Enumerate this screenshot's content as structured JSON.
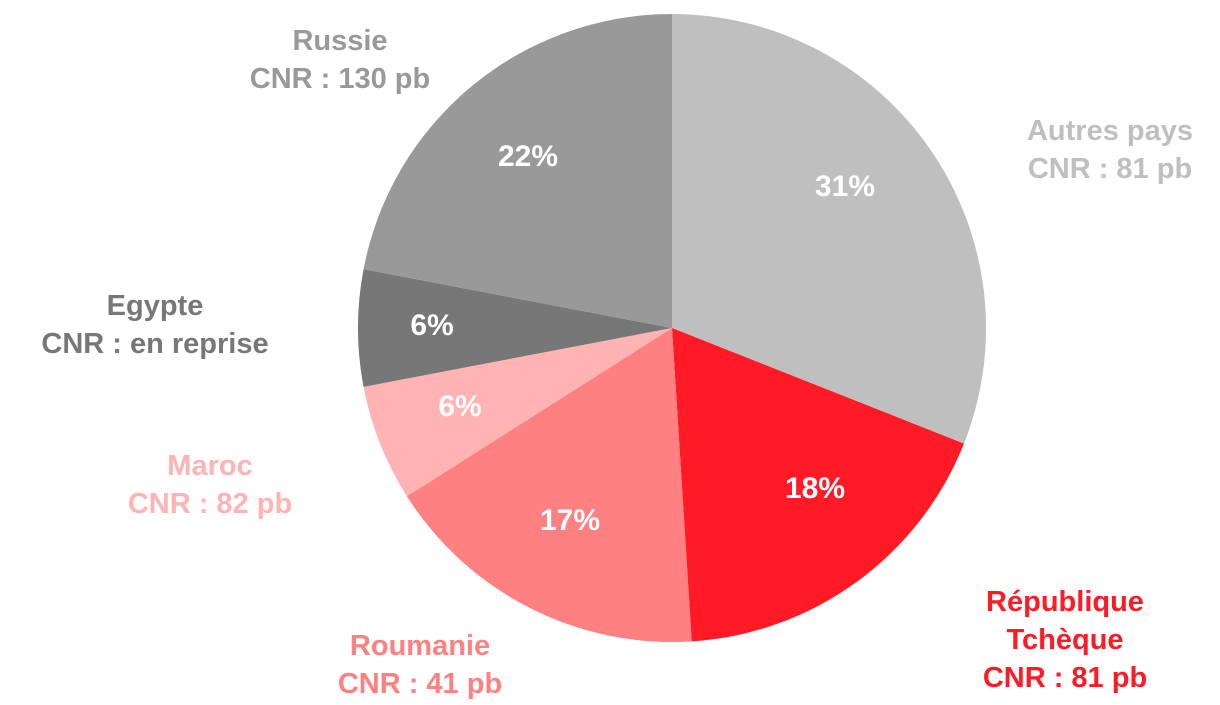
{
  "chart_data": {
    "type": "pie",
    "categories": [
      "Autres pays",
      "République Tchèque",
      "Roumanie",
      "Maroc",
      "Egypte",
      "Russie"
    ],
    "annotations": [
      "CNR : 81 pb",
      "CNR : 81 pb",
      "CNR : 41 pb",
      "CNR : 82 pb",
      "CNR : en reprise",
      "CNR : 130 pb"
    ],
    "values": [
      31,
      18,
      17,
      6,
      6,
      22
    ],
    "value_labels": [
      "31%",
      "18%",
      "17%",
      "6%",
      "6%",
      "22%"
    ],
    "colors": [
      "#bfbfbf",
      "#ff1a25",
      "#ff8080",
      "#ffb3b3",
      "#777777",
      "#999999"
    ]
  }
}
